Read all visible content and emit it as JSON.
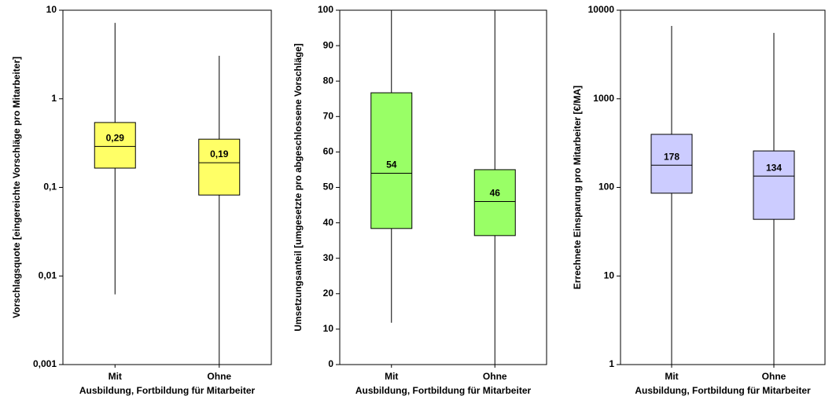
{
  "chart_data": [
    {
      "type": "box",
      "y_label": "Vorschlagsquote [eingereichte Vorschläge pro Mitarbeiter]",
      "x_label": "Ausbildung, Fortbildung für Mitarbeiter",
      "categories": [
        "Mit",
        "Ohne"
      ],
      "color": "#ffff66",
      "log_scale": true,
      "min": [
        0.0062,
        0.001
      ],
      "q1": [
        0.165,
        0.082
      ],
      "median": [
        0.29,
        0.19
      ],
      "q3": [
        0.54,
        0.35
      ],
      "max": [
        7.2,
        3.06
      ],
      "median_labels": [
        "0,29",
        "0,19"
      ],
      "ylim": [
        0.001,
        10
      ],
      "yticks": [
        {
          "value": 0.001,
          "label": "0,001"
        },
        {
          "value": 0.01,
          "label": "0,01"
        },
        {
          "value": 0.1,
          "label": "0,1"
        },
        1,
        10
      ]
    },
    {
      "type": "box",
      "y_label": "Umsetzungsanteil [umgesetzte pro abgeschlossene Vorschläge]",
      "x_label": "Ausbildung, Fortbildung für Mitarbeiter",
      "categories": [
        "Mit",
        "Ohne"
      ],
      "color": "#99ff66",
      "log_scale": false,
      "min": [
        11.8,
        0
      ],
      "q1": [
        38.4,
        36.4
      ],
      "median": [
        54,
        46
      ],
      "q3": [
        76.7,
        55
      ],
      "max": [
        100,
        100
      ],
      "ylim": [
        0,
        100
      ],
      "yticks": [
        0,
        10,
        20,
        30,
        40,
        50,
        60,
        70,
        80,
        90,
        100
      ]
    },
    {
      "type": "box",
      "y_label": "Errechnete Einsparung pro Mitarbeiter [€/MA]",
      "x_label": "Ausbildung, Fortbildung für Mitarbeiter",
      "categories": [
        "Mit",
        "Ohne"
      ],
      "color": "#ccccff",
      "log_scale": true,
      "min": [
        1,
        1
      ],
      "q1": [
        86,
        43.6
      ],
      "median": [
        178,
        134
      ],
      "q3": [
        397,
        258
      ],
      "max": [
        6650,
        5540
      ],
      "ylim": [
        1,
        10000
      ],
      "yticks": [
        1,
        10,
        100,
        1000,
        10000
      ]
    }
  ]
}
